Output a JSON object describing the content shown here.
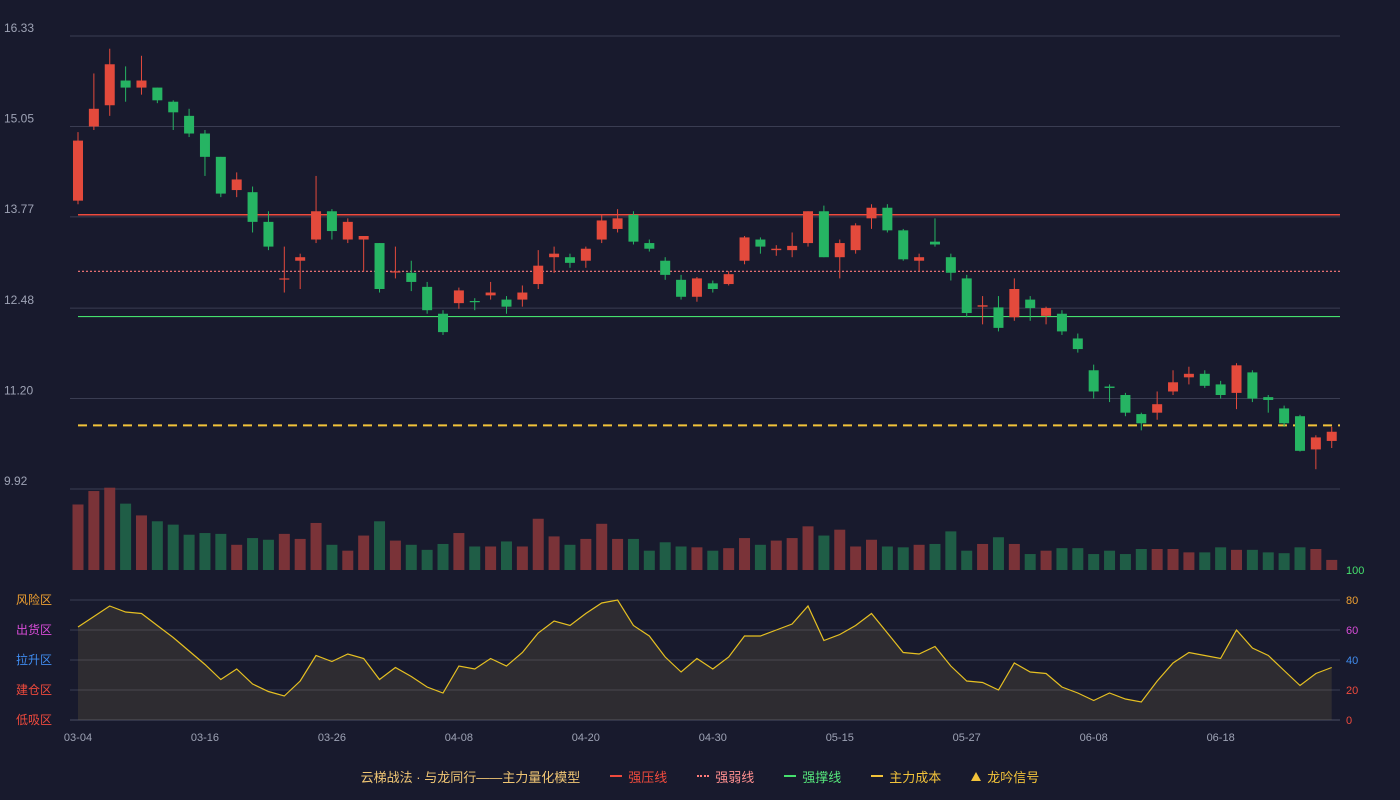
{
  "chart_data": {
    "type": "candlestick",
    "price_axis": {
      "ticks": [
        "16.33",
        "15.05",
        "13.77",
        "12.48",
        "11.20",
        "9.92"
      ],
      "min": 9.92,
      "max": 16.33
    },
    "x_ticks": [
      {
        "index": 0,
        "label": "03-04"
      },
      {
        "index": 8,
        "label": "03-16"
      },
      {
        "index": 16,
        "label": "03-26"
      },
      {
        "index": 24,
        "label": "04-08"
      },
      {
        "index": 32,
        "label": "04-20"
      },
      {
        "index": 40,
        "label": "04-30"
      },
      {
        "index": 48,
        "label": "05-15"
      },
      {
        "index": 56,
        "label": "05-27"
      },
      {
        "index": 64,
        "label": "06-08"
      },
      {
        "index": 72,
        "label": "06-18"
      }
    ],
    "candles": [
      [
        14.0,
        14.85,
        14.97,
        13.95
      ],
      [
        15.05,
        15.3,
        15.8,
        15.0
      ],
      [
        15.35,
        15.93,
        16.15,
        15.2
      ],
      [
        15.7,
        15.6,
        15.9,
        15.4
      ],
      [
        15.6,
        15.7,
        16.05,
        15.5
      ],
      [
        15.6,
        15.42,
        15.6,
        15.38
      ],
      [
        15.4,
        15.25,
        15.42,
        15.0
      ],
      [
        15.2,
        14.95,
        15.3,
        14.9
      ],
      [
        14.95,
        14.62,
        15.0,
        14.35
      ],
      [
        14.62,
        14.1,
        14.62,
        14.05
      ],
      [
        14.15,
        14.3,
        14.4,
        14.05
      ],
      [
        14.12,
        13.7,
        14.2,
        13.55
      ],
      [
        13.7,
        13.35,
        13.85,
        13.3
      ],
      [
        12.9,
        12.9,
        13.35,
        12.7
      ],
      [
        13.15,
        13.2,
        13.25,
        12.75
      ],
      [
        13.45,
        13.85,
        14.35,
        13.4
      ],
      [
        13.85,
        13.57,
        13.88,
        13.45
      ],
      [
        13.45,
        13.7,
        13.75,
        13.4
      ],
      [
        13.45,
        13.5,
        13.5,
        13.0
      ],
      [
        13.4,
        12.75,
        13.4,
        12.7
      ],
      [
        13.0,
        13.0,
        13.35,
        12.9
      ],
      [
        12.98,
        12.85,
        13.15,
        12.72
      ],
      [
        12.78,
        12.45,
        12.85,
        12.4
      ],
      [
        12.4,
        12.14,
        12.45,
        12.1
      ],
      [
        12.55,
        12.73,
        12.77,
        12.47
      ],
      [
        12.58,
        12.57,
        12.62,
        12.45
      ],
      [
        12.66,
        12.7,
        12.85,
        12.6
      ],
      [
        12.6,
        12.5,
        12.65,
        12.4
      ],
      [
        12.6,
        12.7,
        12.8,
        12.5
      ],
      [
        12.82,
        13.08,
        13.3,
        12.75
      ],
      [
        13.2,
        13.25,
        13.35,
        12.98
      ],
      [
        13.2,
        13.12,
        13.25,
        13.05
      ],
      [
        13.15,
        13.32,
        13.35,
        13.05
      ],
      [
        13.45,
        13.72,
        13.8,
        13.4
      ],
      [
        13.6,
        13.75,
        13.88,
        13.55
      ],
      [
        13.8,
        13.42,
        13.85,
        13.38
      ],
      [
        13.4,
        13.32,
        13.45,
        13.28
      ],
      [
        13.15,
        12.95,
        13.2,
        12.88
      ],
      [
        12.88,
        12.64,
        12.95,
        12.6
      ],
      [
        12.64,
        12.9,
        12.92,
        12.57
      ],
      [
        12.83,
        12.75,
        12.87,
        12.7
      ],
      [
        12.82,
        12.96,
        13.0,
        12.8
      ],
      [
        13.15,
        13.48,
        13.5,
        13.1
      ],
      [
        13.45,
        13.35,
        13.48,
        13.25
      ],
      [
        13.3,
        13.32,
        13.37,
        13.22
      ],
      [
        13.3,
        13.36,
        13.55,
        13.2
      ],
      [
        13.4,
        13.85,
        13.85,
        13.35
      ],
      [
        13.85,
        13.2,
        13.93,
        13.2
      ],
      [
        13.2,
        13.4,
        13.45,
        12.9
      ],
      [
        13.3,
        13.65,
        13.68,
        13.25
      ],
      [
        13.75,
        13.9,
        13.95,
        13.6
      ],
      [
        13.9,
        13.58,
        13.95,
        13.55
      ],
      [
        13.58,
        13.17,
        13.6,
        13.15
      ],
      [
        13.15,
        13.2,
        13.25,
        13.0
      ],
      [
        13.42,
        13.38,
        13.75,
        13.35
      ],
      [
        13.2,
        12.98,
        13.25,
        12.87
      ],
      [
        12.9,
        12.41,
        12.95,
        12.35
      ],
      [
        12.5,
        12.52,
        12.65,
        12.25
      ],
      [
        12.49,
        12.2,
        12.65,
        12.15
      ],
      [
        12.35,
        12.75,
        12.9,
        12.3
      ],
      [
        12.6,
        12.48,
        12.65,
        12.3
      ],
      [
        12.37,
        12.48,
        12.5,
        12.25
      ],
      [
        12.4,
        12.15,
        12.45,
        12.1
      ],
      [
        12.05,
        11.9,
        12.12,
        11.85
      ],
      [
        11.6,
        11.3,
        11.68,
        11.2
      ],
      [
        11.37,
        11.35,
        11.4,
        11.15
      ],
      [
        11.25,
        11.0,
        11.28,
        10.95
      ],
      [
        10.98,
        10.85,
        11.0,
        10.75
      ],
      [
        11.0,
        11.12,
        11.3,
        10.9
      ],
      [
        11.3,
        11.43,
        11.6,
        11.25
      ],
      [
        11.5,
        11.55,
        11.65,
        11.4
      ],
      [
        11.55,
        11.38,
        11.6,
        11.35
      ],
      [
        11.4,
        11.25,
        11.45,
        11.2
      ],
      [
        11.28,
        11.67,
        11.7,
        11.05
      ],
      [
        11.57,
        11.2,
        11.6,
        11.15
      ],
      [
        11.22,
        11.18,
        11.25,
        11.0
      ],
      [
        11.06,
        10.85,
        11.1,
        10.8
      ],
      [
        10.95,
        10.46,
        10.97,
        10.45
      ],
      [
        10.48,
        10.65,
        10.68,
        10.2
      ],
      [
        10.6,
        10.73,
        10.8,
        10.5
      ]
    ],
    "levels": {
      "strong_pressure": 13.8,
      "weak": 13.0,
      "support": 12.36,
      "main_cost": 10.82
    },
    "volume": [
      78,
      94,
      98,
      79,
      65,
      58,
      54,
      42,
      44,
      43,
      30,
      38,
      36,
      43,
      37,
      56,
      30,
      23,
      41,
      58,
      35,
      30,
      24,
      31,
      44,
      28,
      28,
      34,
      28,
      61,
      40,
      30,
      37,
      55,
      37,
      37,
      23,
      33,
      28,
      27,
      23,
      26,
      38,
      30,
      35,
      38,
      52,
      41,
      48,
      28,
      36,
      28,
      27,
      30,
      31,
      46,
      23,
      31,
      39,
      31,
      19,
      23,
      26,
      26,
      19,
      23,
      19,
      25,
      25,
      25,
      21,
      21,
      27,
      24,
      24,
      21,
      20,
      27,
      25,
      12
    ],
    "oscillator": {
      "zone_labels": [
        "风险区",
        "出货区",
        "拉升区",
        "建仓区",
        "低吸区"
      ],
      "right_ticks": [
        "100",
        "80",
        "60",
        "40",
        "20",
        "0"
      ],
      "values": [
        62,
        69,
        76,
        72,
        71,
        63,
        55,
        46,
        37,
        27,
        34,
        24,
        19,
        16,
        26,
        43,
        39,
        44,
        41,
        27,
        35,
        29,
        22,
        18,
        36,
        34,
        41,
        36,
        45,
        58,
        66,
        63,
        71,
        78,
        80,
        63,
        56,
        42,
        32,
        41,
        34,
        42,
        56,
        56,
        60,
        64,
        76,
        53,
        57,
        63,
        71,
        58,
        45,
        44,
        49,
        36,
        26,
        25,
        20,
        38,
        32,
        31,
        22,
        18,
        13,
        18,
        14,
        12,
        26,
        38,
        45,
        43,
        41,
        60,
        48,
        43,
        33,
        23,
        31,
        35
      ]
    },
    "legend": {
      "title": "云梯战法 · 与龙同行——主力量化模型",
      "items": [
        {
          "label": "强压线",
          "color": "#ef4a3d",
          "style": "solid"
        },
        {
          "label": "强弱线",
          "color": "#ff7b7b",
          "style": "dotted"
        },
        {
          "label": "强撑线",
          "color": "#45e06d",
          "style": "solid"
        },
        {
          "label": "主力成本",
          "color": "#f2c33a",
          "style": "dashed"
        },
        {
          "label": "龙吟信号",
          "color": "#f2c33a",
          "style": "triangle"
        }
      ]
    },
    "colors": {
      "up": "#e34a3c",
      "down": "#26b463",
      "grid": "#3a3d52",
      "axis_text": "#9ea3b5",
      "osc_line": "#e6c022"
    }
  }
}
